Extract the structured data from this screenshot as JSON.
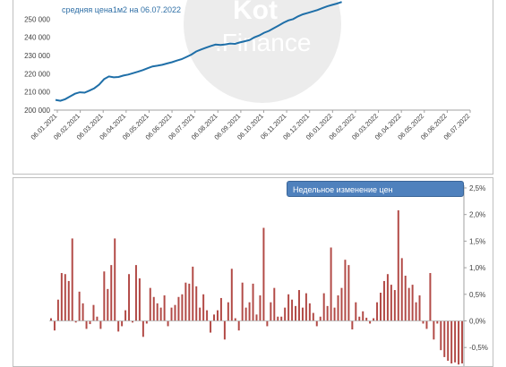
{
  "watermark": {
    "line1": "Kot",
    "line2": ".Finance"
  },
  "chart_data": [
    {
      "type": "line",
      "title": "средняя цена1м2 на 06.07.2022",
      "color": "#1f6fa8",
      "ylim": [
        200000,
        260000
      ],
      "yticks": [
        200000,
        210000,
        220000,
        230000,
        240000,
        250000
      ],
      "ytick_labels": [
        "200 000",
        "210 000",
        "220 000",
        "230 000",
        "240 000",
        "250 000"
      ],
      "xtick_labels": [
        "06.01.2021",
        "06.02.2021",
        "06.03.2021",
        "06.04.2021",
        "06.05.2021",
        "06.06.2021",
        "06.07.2021",
        "06.08.2021",
        "06.09.2021",
        "06.10.2021",
        "06.11.2021",
        "06.12.2021",
        "06.01.2022",
        "06.02.2022",
        "06.03.2022",
        "06.04.2022",
        "06.05.2022",
        "06.06.2022",
        "06.07.2022"
      ],
      "values": [
        205600,
        205100,
        206000,
        207500,
        209000,
        209800,
        209600,
        210700,
        212000,
        214000,
        217000,
        218500,
        218000,
        218200,
        219000,
        219500,
        220300,
        221100,
        222000,
        223000,
        224000,
        224400,
        224900,
        225600,
        226300,
        227200,
        228000,
        229200,
        230500,
        232200,
        233300,
        234300,
        235200,
        236000,
        235800,
        236100,
        236600,
        236400,
        237200,
        237800,
        238500,
        240000,
        241000,
        242500,
        243500,
        245000,
        246500,
        248000,
        249300,
        250000,
        251500,
        252600,
        253400,
        254200,
        255000,
        256000,
        257000,
        257800,
        258500,
        259400
      ]
    },
    {
      "type": "bar",
      "title": "Недельное изменение цен",
      "color": "#b24a46",
      "ylim": [
        -0.0085,
        0.0255
      ],
      "yticks": [
        -0.005,
        0,
        0.005,
        0.01,
        0.015,
        0.02,
        0.025
      ],
      "ytick_labels": [
        "-0,5%",
        "0,0%",
        "0,5%",
        "1,0%",
        "1,5%",
        "2,0%",
        "2,5%"
      ],
      "values": [
        0.0005,
        -0.0018,
        0.004,
        0.009,
        0.0088,
        0.0075,
        0.0155,
        -0.0003,
        0.0055,
        0.0033,
        -0.0015,
        -0.0006,
        0.003,
        0.0008,
        -0.0015,
        0.0093,
        0.006,
        0.0105,
        0.0155,
        -0.002,
        -0.001,
        0.002,
        0.0088,
        -0.0003,
        0.0105,
        0.008,
        -0.003,
        -0.0005,
        0.0062,
        0.0045,
        0.0033,
        0.0025,
        0.0048,
        -0.001,
        0.0025,
        0.003,
        0.0045,
        0.005,
        0.0072,
        0.007,
        0.0102,
        0.0065,
        0.0025,
        0.005,
        0.002,
        -0.0022,
        0.0012,
        0.002,
        0.0043,
        -0.0035,
        0.0035,
        0.0098,
        0.0005,
        -0.0018,
        0.0072,
        0.0025,
        0.0035,
        0.007,
        0.0012,
        0.0048,
        0.0175,
        -0.001,
        0.0035,
        0.0062,
        0.0008,
        0.0008,
        0.0025,
        0.005,
        0.004,
        0.0028,
        0.0058,
        0.0025,
        0.0052,
        0.0033,
        0.0015,
        -0.001,
        0.0008,
        0.0052,
        0.0028,
        0.0138,
        0.0025,
        0.0048,
        0.0062,
        0.0115,
        0.0105,
        -0.0016,
        0.0035,
        0.0008,
        0.0018,
        0.0006,
        -0.0005,
        0.0005,
        0.0035,
        0.0053,
        0.0075,
        0.0088,
        0.0068,
        0.0058,
        0.0208,
        0.0118,
        0.0085,
        0.0062,
        0.0068,
        0.0035,
        0.0048,
        -0.0005,
        -0.0015,
        0.009,
        -0.0035,
        -0.0005,
        -0.0055,
        -0.0068,
        -0.0075,
        -0.008,
        -0.0078,
        -0.0082,
        -0.008
      ]
    }
  ]
}
